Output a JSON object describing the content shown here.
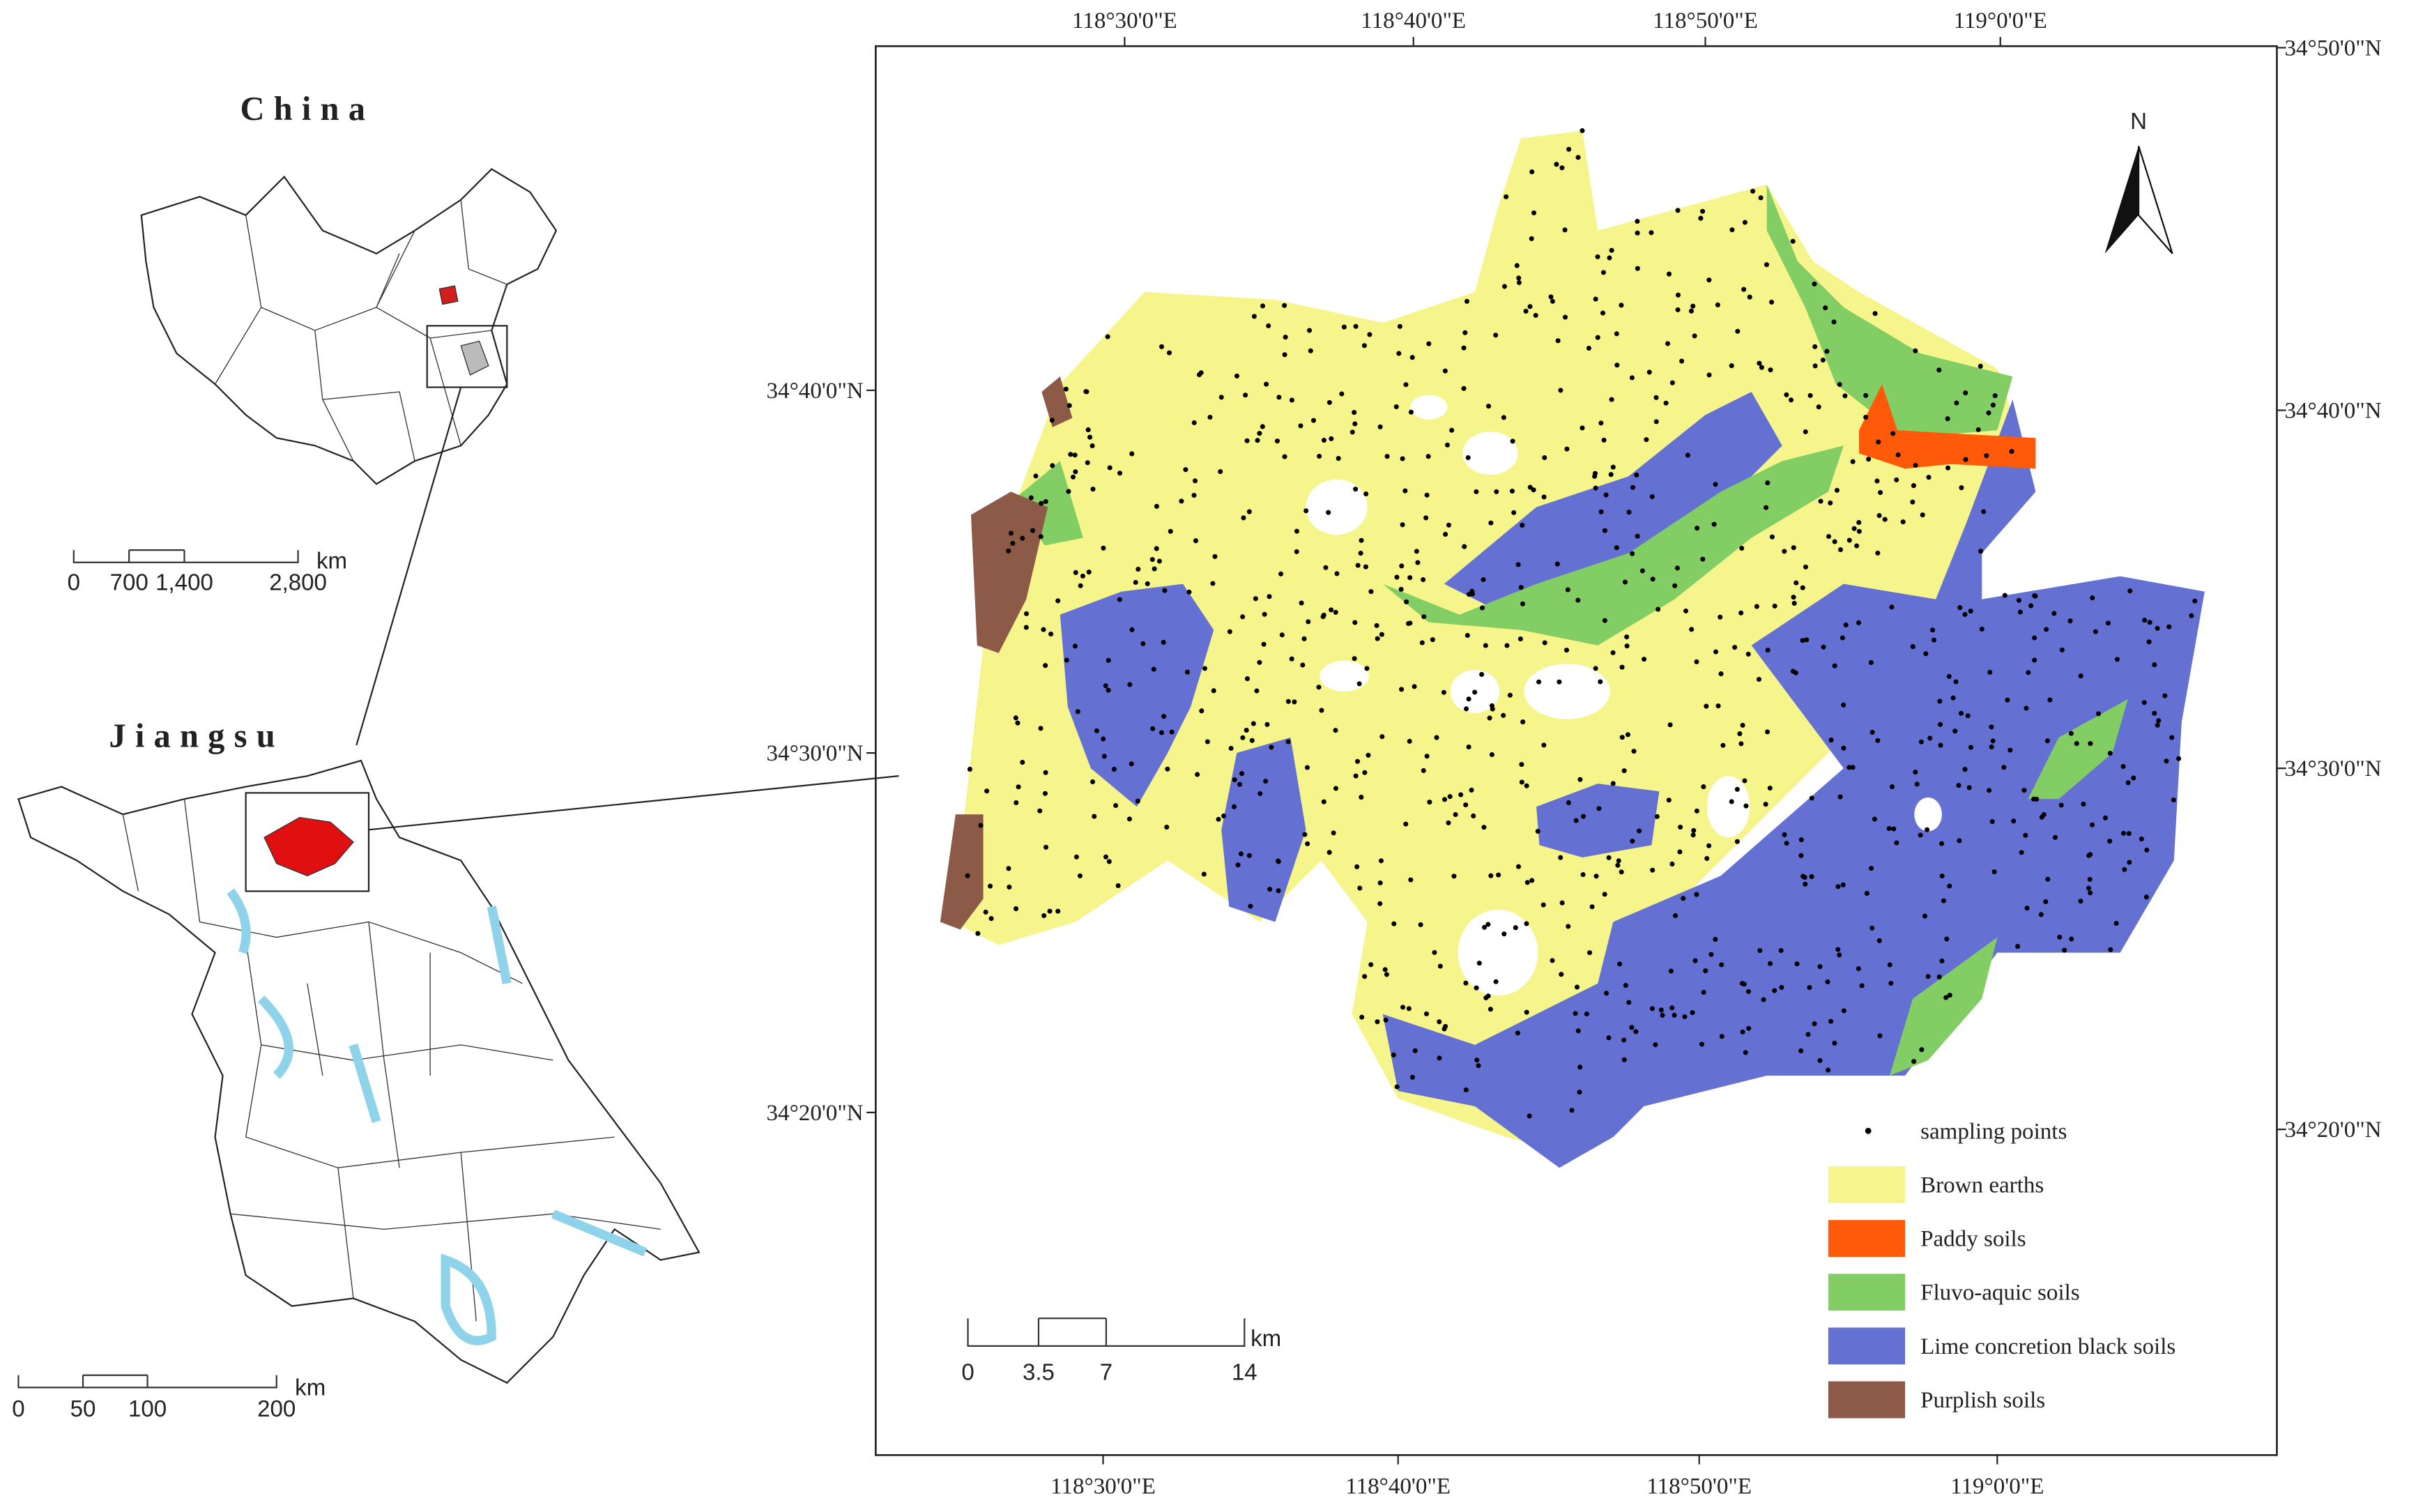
{
  "overview": {
    "china": {
      "title": "China",
      "scale": {
        "ticks": [
          "0",
          "700",
          "1,400",
          "2,800"
        ],
        "unit": "km"
      }
    },
    "jiangsu": {
      "title": "Jiangsu",
      "scale": {
        "ticks": [
          "0",
          "50",
          "100",
          "200"
        ],
        "unit": "km"
      }
    }
  },
  "main_map": {
    "top_labels": [
      "118°30'0\"E",
      "118°40'0\"E",
      "118°50'0\"E",
      "119°0'0\"E"
    ],
    "bottom_labels": [
      "118°30'0\"E",
      "118°40'0\"E",
      "118°50'0\"E",
      "119°0'0\"E"
    ],
    "left_labels": [
      "34°40'0\"N",
      "34°30'0\"N",
      "34°20'0\"N"
    ],
    "right_labels": [
      "34°50'0\"N",
      "34°40'0\"N",
      "34°30'0\"N",
      "34°20'0\"N"
    ],
    "north": "N",
    "scale": {
      "ticks": [
        "0",
        "3.5",
        "7",
        "14"
      ],
      "unit": "km"
    },
    "legend": [
      {
        "label": "sampling points",
        "color": "#000000"
      },
      {
        "label": "Brown earths",
        "color": "#f5f58c"
      },
      {
        "label": "Paddy soils",
        "color": "#ff5a0a"
      },
      {
        "label": "Fluvo-aquic soils",
        "color": "#82cd64"
      },
      {
        "label": "Lime concretion black soils",
        "color": "#6470d2"
      },
      {
        "label": "Purplish soils",
        "color": "#8c5a46"
      }
    ]
  }
}
